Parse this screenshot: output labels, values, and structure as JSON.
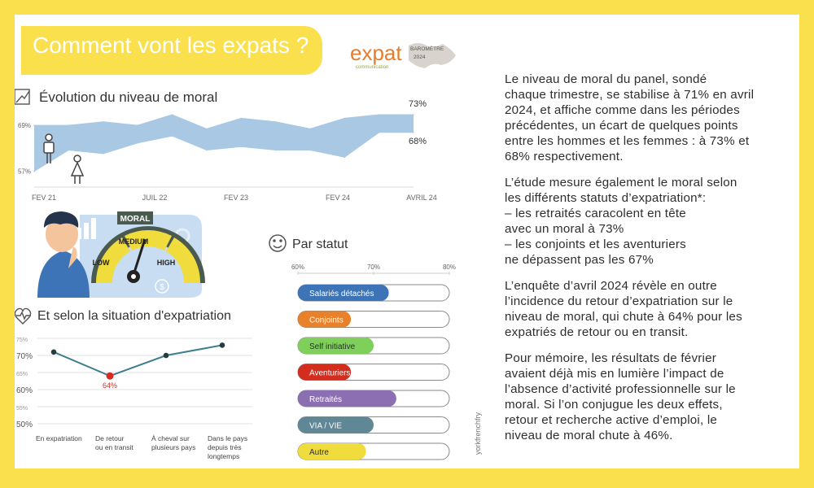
{
  "header": {
    "title": "Comment vont les expats ?",
    "logo_text": "expat",
    "logo_sub": "communication",
    "barometre_label": "BAROMÈTRE",
    "barometre_year": "2024"
  },
  "colors": {
    "background": "#fbe04e",
    "band": "#a9c8e4",
    "line": "#3e7f8e",
    "highlight": "#d92b20",
    "text": "#2e2e2e"
  },
  "moral_section": {
    "title": "Évolution du niveau de moral"
  },
  "gauge": {
    "moral": "MORAL",
    "medium": "MEDIUM",
    "low": "LOW",
    "high": "HIGH"
  },
  "statut_section": {
    "title": "Par statut"
  },
  "situation_section": {
    "title": "Et selon la situation d'expatriation"
  },
  "credit": "yorkfrenchfry",
  "chart_data": [
    {
      "type": "area",
      "title": "Évolution du niveau de moral",
      "x_ticks": [
        "FEV 21",
        "JUIL 22",
        "FEV 23",
        "FEV 24",
        "AVRIL 24"
      ],
      "y_ticks": [
        "69%",
        "57%"
      ],
      "end_labels": [
        "73%",
        "68%"
      ],
      "series": [
        {
          "name": "Hommes",
          "values": [
            70,
            70,
            71,
            70,
            73,
            69,
            72,
            71,
            69,
            72,
            73,
            73
          ]
        },
        {
          "name": "Femmes",
          "values": [
            57,
            63,
            62,
            65,
            67,
            63,
            64,
            63,
            63,
            61,
            68,
            68
          ]
        }
      ]
    },
    {
      "type": "bar",
      "title": "Par statut",
      "ticks": [
        "60%",
        "70%",
        "80%"
      ],
      "xlim": [
        60,
        80
      ],
      "categories": [
        "Salariés détachés",
        "Conjoints",
        "Self initiative",
        "Aventuriers",
        "Retraités",
        "VIA / VIE",
        "Autre"
      ],
      "values": [
        72,
        67,
        70,
        67,
        73,
        70,
        69
      ],
      "colors": [
        "#3d74b8",
        "#e8812a",
        "#7ed05a",
        "#d22d1e",
        "#8b6fb2",
        "#5f8796",
        "#f1dc3e"
      ]
    },
    {
      "type": "line",
      "title": "Et selon la situation d'expatriation",
      "categories": [
        "En expatriation",
        "De retour ou en transit",
        "À cheval sur plusieurs pays",
        "Dans le pays depuis très longtemps"
      ],
      "category_lines": [
        [
          "En expatriation"
        ],
        [
          "De retour",
          "ou en transit"
        ],
        [
          "À cheval sur",
          "plusieurs pays"
        ],
        [
          "Dans le pays",
          "depuis très",
          "longtemps"
        ]
      ],
      "values": [
        71,
        64,
        70,
        73
      ],
      "highlight_label": "64%",
      "y_ticks": [
        "75%",
        "70%",
        "65%",
        "60%",
        "55%",
        "50%"
      ],
      "ylim": [
        50,
        75
      ]
    }
  ],
  "body_text": {
    "paragraphs": [
      [
        "Le niveau de moral du panel, sondé",
        "chaque trimestre, se stabilise à 71% en avril",
        "2024, et affiche comme dans les périodes",
        "précédentes, un écart de quelques points",
        "entre les hommes et les femmes : à 73% et",
        "68% respectivement."
      ],
      [
        "L’étude mesure également le moral selon",
        "les différents statuts d’expatriation*:",
        "– les retraités caracolent en tête",
        "avec un moral à 73%",
        "– les conjoints et les aventuriers",
        "ne dépassent pas les 67%"
      ],
      [
        "L’enquête d’avril 2024 révèle en outre",
        "l’incidence du retour d’expatriation sur le",
        "niveau de moral, qui chute à 64% pour les",
        "expatriés de retour ou en transit."
      ],
      [
        "Pour mémoire, les résultats de février",
        "avaient déjà mis en lumière l’impact de",
        "l’absence d’activité professionnelle sur le",
        "moral. Si l’on conjugue les deux effets,",
        "retour et recherche active d’emploi, le",
        "niveau de moral chute à 46%."
      ]
    ]
  }
}
